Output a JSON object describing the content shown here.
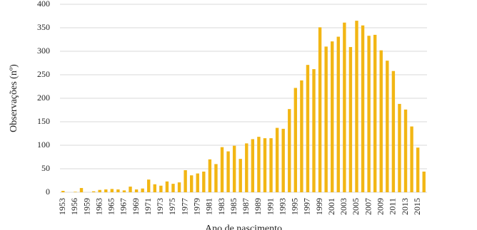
{
  "chart_data": {
    "type": "bar",
    "x_label": "Ano de nascimento",
    "y_label": "Observações (nº)",
    "color": "#f2b614",
    "grid": true,
    "ylim": [
      0,
      400
    ],
    "yticks": [
      0,
      50,
      100,
      150,
      200,
      250,
      300,
      350,
      400
    ],
    "categories": [
      "1953",
      null,
      "1956",
      null,
      "1959",
      null,
      "1963",
      null,
      "1965",
      null,
      "1967",
      null,
      "1969",
      null,
      "1971",
      null,
      "1973",
      null,
      "1975",
      null,
      "1977",
      null,
      "1979",
      null,
      "1981",
      null,
      "1983",
      null,
      "1985",
      null,
      "1987",
      null,
      "1989",
      null,
      "1991",
      null,
      "1993",
      null,
      "1995",
      null,
      "1997",
      null,
      "1999",
      null,
      "2001",
      null,
      "2003",
      null,
      "2005",
      null,
      "2007",
      null,
      "2009",
      null,
      "2011",
      null,
      "2013",
      null,
      "2015",
      null
    ],
    "values": [
      3,
      0,
      1,
      9,
      0,
      2,
      5,
      6,
      7,
      6,
      4,
      12,
      6,
      8,
      27,
      17,
      14,
      23,
      18,
      21,
      47,
      36,
      40,
      44,
      70,
      60,
      96,
      87,
      99,
      71,
      104,
      113,
      118,
      115,
      115,
      137,
      135,
      177,
      222,
      238,
      271,
      262,
      351,
      310,
      321,
      331,
      361,
      309,
      365,
      355,
      333,
      335,
      302,
      280,
      258,
      188,
      176,
      140,
      95,
      44
    ]
  }
}
